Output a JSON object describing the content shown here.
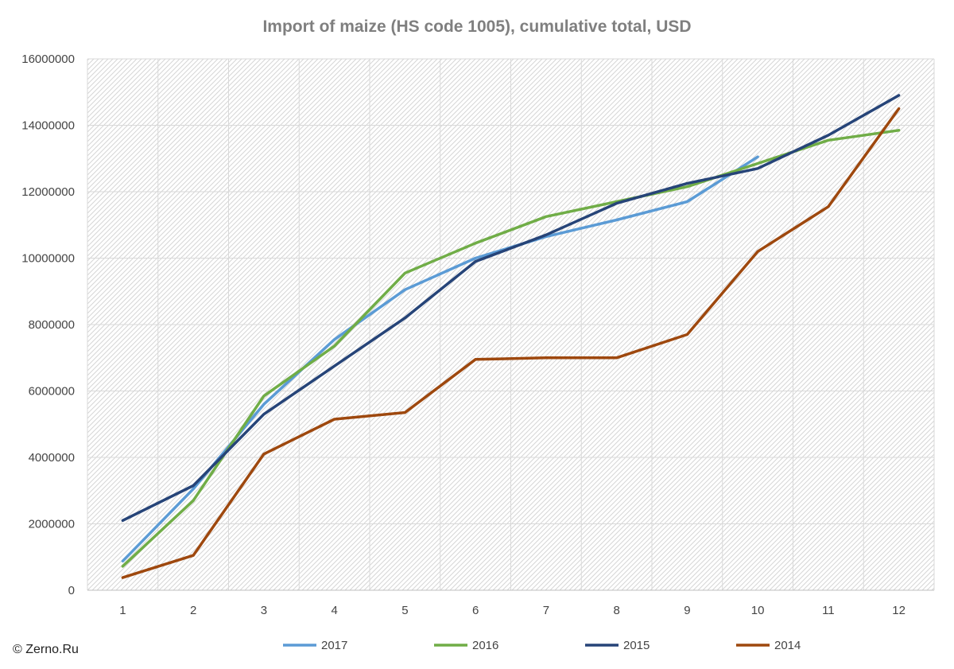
{
  "chart_data": {
    "type": "line",
    "title": "Import of maize (HS code 1005), cumulative total, USD",
    "xlabel": "",
    "ylabel": "",
    "categories": [
      "1",
      "2",
      "3",
      "4",
      "5",
      "6",
      "7",
      "8",
      "9",
      "10",
      "11",
      "12"
    ],
    "ylim": [
      0,
      16000000
    ],
    "yticks": [
      0,
      2000000,
      4000000,
      6000000,
      8000000,
      10000000,
      12000000,
      14000000,
      16000000
    ],
    "ytick_labels": [
      "0",
      "2000000",
      "4000000",
      "6000000",
      "8000000",
      "10000000",
      "12000000",
      "14000000",
      "16000000"
    ],
    "grid": true,
    "legend_position": "bottom",
    "series": [
      {
        "name": "2017",
        "color": "#5b9bd5",
        "values": [
          880000,
          3050000,
          5600000,
          7550000,
          9050000,
          10000000,
          10650000,
          11150000,
          11700000,
          13050000,
          null,
          null
        ]
      },
      {
        "name": "2016",
        "color": "#70ad47",
        "values": [
          720000,
          2700000,
          5850000,
          7350000,
          9550000,
          10450000,
          11250000,
          11700000,
          12150000,
          12850000,
          13550000,
          13850000
        ]
      },
      {
        "name": "2015",
        "color": "#264478",
        "values": [
          2100000,
          3150000,
          5300000,
          6750000,
          8200000,
          9900000,
          10700000,
          11650000,
          12250000,
          12700000,
          13700000,
          14900000
        ]
      },
      {
        "name": "2014",
        "color": "#9e480e",
        "values": [
          380000,
          1050000,
          4100000,
          5150000,
          5350000,
          6950000,
          7000000,
          7000000,
          7700000,
          10200000,
          11550000,
          14500000
        ]
      }
    ]
  },
  "footer": {
    "copyright": "© Zerno.Ru"
  }
}
